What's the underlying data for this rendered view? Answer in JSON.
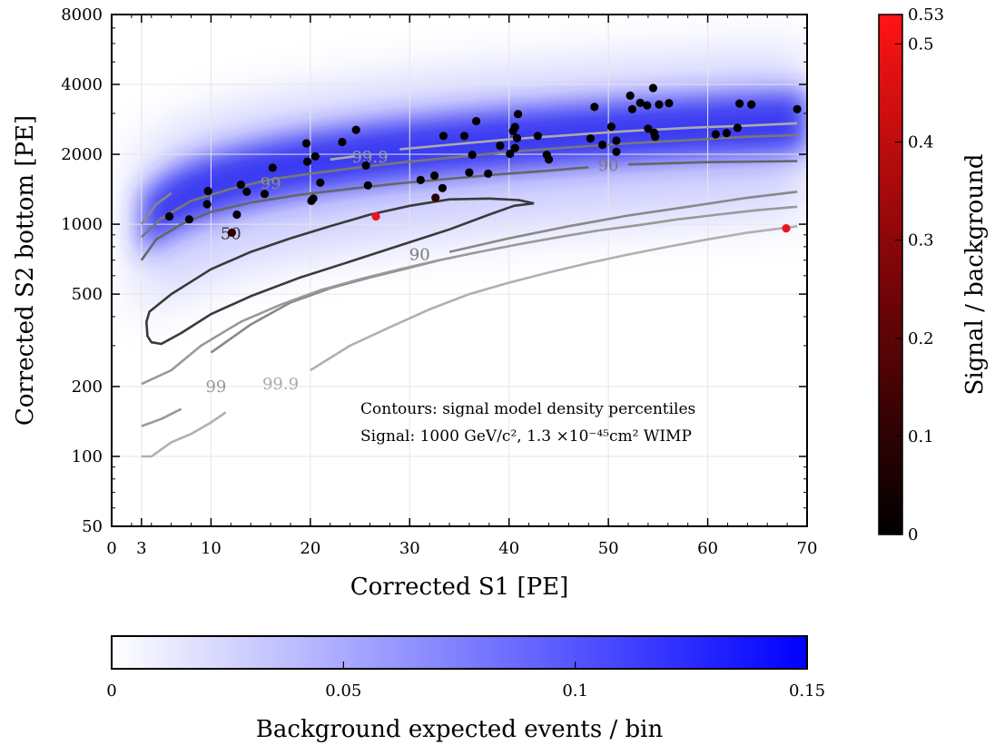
{
  "chart_data": {
    "type": "scatter",
    "xlabel": "Corrected S1 [PE]",
    "ylabel": "Corrected S2 bottom [PE]",
    "xlim": [
      0,
      70
    ],
    "ylim": [
      50,
      8000
    ],
    "y_scale": "log",
    "grid": true,
    "x_ticks": [
      0,
      3,
      10,
      20,
      30,
      40,
      50,
      60,
      70
    ],
    "y_ticks": [
      50,
      100,
      200,
      500,
      1000,
      2000,
      4000,
      8000
    ],
    "annotations": [
      "Contours: signal model density percentiles",
      "Signal: 1000 GeV/c², 1.3 ×10⁻⁴⁵cm² WIMP"
    ],
    "contour_labels": [
      {
        "text": "50",
        "x": 12,
        "y": 910,
        "color": "#3a3a3a"
      },
      {
        "text": "90",
        "x": 31,
        "y": 740,
        "color": "#7a7a7a"
      },
      {
        "text": "90",
        "x": 50,
        "y": 1800,
        "color": "#7a7a7a"
      },
      {
        "text": "99",
        "x": 16,
        "y": 1500,
        "color": "#8c8c8c"
      },
      {
        "text": "99.9",
        "x": 26,
        "y": 1950,
        "color": "#9a9a9a"
      },
      {
        "text": "99",
        "x": 10.5,
        "y": 200,
        "color": "#9a9a9a"
      },
      {
        "text": "99.9",
        "x": 17,
        "y": 205,
        "color": "#aaaaaa"
      }
    ],
    "contours": [
      {
        "level": "50",
        "color": "#3a3a3a",
        "points": [
          [
            42.5,
            1230
          ],
          [
            41,
            1270
          ],
          [
            38,
            1290
          ],
          [
            34,
            1280
          ],
          [
            30,
            1200
          ],
          [
            26,
            1100
          ],
          [
            22,
            980
          ],
          [
            18,
            870
          ],
          [
            14,
            760
          ],
          [
            10,
            640
          ],
          [
            6,
            500
          ],
          [
            3.8,
            420
          ],
          [
            3.5,
            380
          ],
          [
            3.6,
            330
          ],
          [
            4,
            310
          ],
          [
            5,
            305
          ],
          [
            7,
            340
          ],
          [
            10,
            410
          ],
          [
            14,
            490
          ],
          [
            19,
            590
          ],
          [
            24,
            690
          ],
          [
            29,
            810
          ],
          [
            34,
            950
          ],
          [
            38,
            1100
          ],
          [
            40.5,
            1200
          ],
          [
            42.5,
            1230
          ]
        ]
      },
      {
        "level": "90",
        "color": "#666666",
        "points": [
          [
            3,
            700
          ],
          [
            4.5,
            860
          ],
          [
            7,
            1000
          ],
          [
            10,
            1130
          ],
          [
            14,
            1240
          ],
          [
            19,
            1340
          ],
          [
            24,
            1420
          ],
          [
            29,
            1500
          ],
          [
            34,
            1570
          ],
          [
            39,
            1640
          ],
          [
            44,
            1700
          ],
          [
            48,
            1760
          ]
        ]
      },
      {
        "level": "90",
        "color": "#666666",
        "points": [
          [
            52,
            1810
          ],
          [
            60,
            1850
          ],
          [
            69,
            1870
          ]
        ]
      },
      {
        "level": "90",
        "color": "#888888",
        "points": [
          [
            10,
            280
          ],
          [
            14,
            370
          ],
          [
            18,
            460
          ],
          [
            22,
            530
          ],
          [
            26,
            590
          ],
          [
            30,
            650
          ],
          [
            33,
            700
          ]
        ]
      },
      {
        "level": "90",
        "color": "#888888",
        "points": [
          [
            34,
            760
          ],
          [
            40,
            870
          ],
          [
            46,
            980
          ],
          [
            52,
            1090
          ],
          [
            58,
            1190
          ],
          [
            64,
            1300
          ],
          [
            69,
            1380
          ]
        ]
      },
      {
        "level": "99",
        "color": "#777777",
        "points": [
          [
            3,
            880
          ],
          [
            5,
            1060
          ],
          [
            8,
            1260
          ],
          [
            12,
            1420
          ],
          [
            16,
            1560
          ],
          [
            20,
            1650
          ],
          [
            25,
            1760
          ],
          [
            30,
            1860
          ],
          [
            35,
            1950
          ],
          [
            40,
            2050
          ],
          [
            46,
            2140
          ],
          [
            52,
            2230
          ],
          [
            58,
            2300
          ],
          [
            64,
            2380
          ],
          [
            69,
            2420
          ]
        ]
      },
      {
        "level": "99",
        "color": "#888888",
        "points": [
          [
            3,
            1000
          ],
          [
            4.5,
            1220
          ],
          [
            6,
            1360
          ]
        ]
      },
      {
        "level": "99.9",
        "color": "#aaaaaa",
        "points": [
          [
            29,
            2100
          ],
          [
            34,
            2200
          ],
          [
            40,
            2320
          ],
          [
            46,
            2420
          ],
          [
            52,
            2520
          ],
          [
            58,
            2600
          ],
          [
            64,
            2660
          ],
          [
            69,
            2720
          ]
        ]
      },
      {
        "level": "99.9",
        "color": "#aaaaaa",
        "points": [
          [
            22,
            1900
          ],
          [
            24.5,
            1960
          ]
        ]
      },
      {
        "level": "99",
        "color": "#999999",
        "points": [
          [
            3,
            205
          ],
          [
            6,
            235
          ],
          [
            9,
            300
          ],
          [
            13,
            380
          ],
          [
            17,
            450
          ],
          [
            21,
            520
          ],
          [
            25,
            580
          ],
          [
            29,
            640
          ],
          [
            33,
            700
          ],
          [
            37,
            760
          ],
          [
            41,
            820
          ],
          [
            45,
            880
          ],
          [
            49,
            940
          ],
          [
            53,
            990
          ],
          [
            57,
            1050
          ],
          [
            61,
            1100
          ],
          [
            65,
            1150
          ],
          [
            69,
            1190
          ]
        ]
      },
      {
        "level": "99.9",
        "color": "#b0b0b0",
        "points": [
          [
            20,
            235
          ],
          [
            24,
            300
          ],
          [
            28,
            360
          ],
          [
            32,
            430
          ],
          [
            36,
            500
          ],
          [
            40,
            560
          ],
          [
            44,
            620
          ],
          [
            48,
            680
          ],
          [
            52,
            740
          ],
          [
            56,
            800
          ],
          [
            60,
            860
          ],
          [
            64,
            920
          ],
          [
            69,
            980
          ]
        ]
      },
      {
        "level": "99",
        "color": "#9a9a9a",
        "points": [
          [
            3,
            135
          ],
          [
            5,
            145
          ],
          [
            7,
            160
          ]
        ]
      },
      {
        "level": "99.9",
        "color": "#b0b0b0",
        "points": [
          [
            3,
            100
          ],
          [
            4,
            100
          ],
          [
            6,
            115
          ],
          [
            8,
            125
          ],
          [
            10,
            140
          ],
          [
            11.5,
            155
          ]
        ]
      }
    ],
    "series": [
      {
        "name": "",
        "color": "#000000",
        "points": [
          [
            5.8,
            1080
          ],
          [
            7.8,
            1050
          ],
          [
            9.6,
            1220
          ],
          [
            9.7,
            1390
          ],
          [
            12.6,
            1100
          ],
          [
            13,
            1480
          ],
          [
            13.6,
            1380
          ],
          [
            15.4,
            1350
          ],
          [
            16.2,
            1750
          ],
          [
            20.1,
            1260
          ],
          [
            20.3,
            1290
          ],
          [
            21,
            1510
          ],
          [
            19.7,
            1860
          ],
          [
            19.6,
            2230
          ],
          [
            20.5,
            1960
          ],
          [
            23.2,
            2260
          ],
          [
            24.6,
            2550
          ],
          [
            25.6,
            1790
          ],
          [
            25.8,
            1470
          ],
          [
            31.1,
            1550
          ],
          [
            32.5,
            1620
          ],
          [
            33.3,
            1430
          ],
          [
            33.4,
            2400
          ],
          [
            35.5,
            2400
          ],
          [
            36,
            1670
          ],
          [
            36.3,
            1990
          ],
          [
            36.7,
            2780
          ],
          [
            37.9,
            1650
          ],
          [
            39.1,
            2180
          ],
          [
            40.1,
            2010
          ],
          [
            40.4,
            2520
          ],
          [
            40.6,
            2130
          ],
          [
            40.6,
            2620
          ],
          [
            40.8,
            2350
          ],
          [
            40.9,
            2980
          ],
          [
            42.9,
            2400
          ],
          [
            43.8,
            1990
          ],
          [
            44,
            1900
          ],
          [
            48.2,
            2340
          ],
          [
            48.6,
            3200
          ],
          [
            49.4,
            2200
          ],
          [
            50.3,
            2630
          ],
          [
            50.8,
            2050
          ],
          [
            50.8,
            2290
          ],
          [
            52.2,
            3580
          ],
          [
            52.4,
            3130
          ],
          [
            53.2,
            3330
          ],
          [
            53.9,
            3250
          ],
          [
            54,
            2580
          ],
          [
            54.5,
            3860
          ],
          [
            54.6,
            2480
          ],
          [
            54.7,
            2380
          ],
          [
            55.1,
            3280
          ],
          [
            56.1,
            3320
          ],
          [
            60.8,
            2440
          ],
          [
            61.9,
            2470
          ],
          [
            63,
            2600
          ],
          [
            63.2,
            3310
          ],
          [
            64.4,
            3280
          ],
          [
            69,
            3130
          ]
        ]
      },
      {
        "name": "",
        "color": "#2a0000",
        "points": [
          [
            12.1,
            920
          ],
          [
            32.6,
            1300
          ]
        ]
      },
      {
        "name": "",
        "color": "#e8171c",
        "points": [
          [
            26.6,
            1080
          ],
          [
            67.9,
            960
          ]
        ]
      }
    ],
    "colorbar_signal": {
      "label": "Signal / background",
      "min": 0,
      "max": 0.53,
      "ticks": [
        "0",
        "0.1",
        "0.2",
        "0.3",
        "0.4",
        "0.5",
        "0.53"
      ]
    },
    "colorbar_background": {
      "label": "Background expected events / bin",
      "min": 0,
      "max": 0.15,
      "ticks": [
        "0",
        "0.05",
        "0.1",
        "0.15"
      ]
    }
  }
}
